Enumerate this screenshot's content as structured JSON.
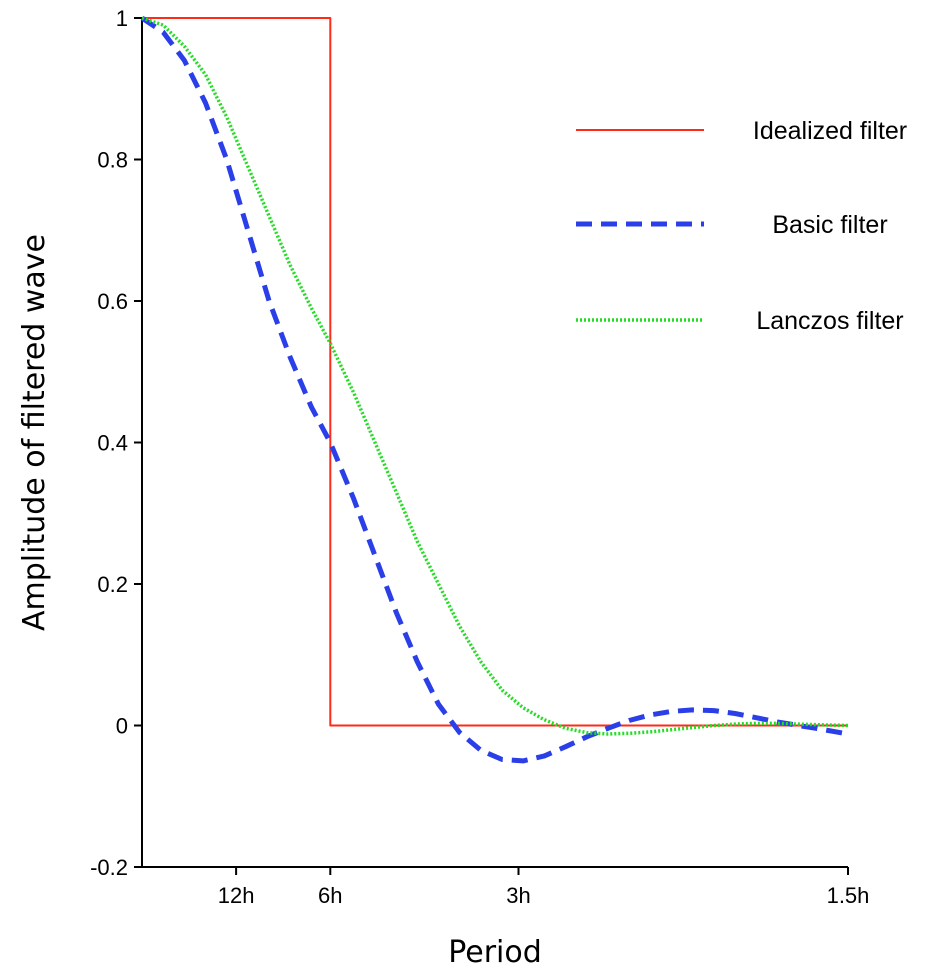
{
  "chart_data": {
    "type": "line",
    "xlabel": "Period",
    "ylabel": "Amplitude of filtered wave",
    "xlim": [
      0,
      1
    ],
    "ylim": [
      -0.2,
      1
    ],
    "y_ticks": [
      {
        "value": 1,
        "label": "1"
      },
      {
        "value": 0.8,
        "label": "0.8"
      },
      {
        "value": 0.6,
        "label": "0.6"
      },
      {
        "value": 0.4,
        "label": "0.4"
      },
      {
        "value": 0.2,
        "label": "0.2"
      },
      {
        "value": 0,
        "label": "0"
      },
      {
        "value": -0.2,
        "label": "-0.2"
      }
    ],
    "x_ticks": [
      {
        "value": 0.1333,
        "label": "12h"
      },
      {
        "value": 0.2667,
        "label": "6h"
      },
      {
        "value": 0.5333,
        "label": "3h"
      },
      {
        "value": 1.0,
        "label": "1.5h"
      }
    ],
    "legend_position": "top-right",
    "series": [
      {
        "name": "Idealized filter",
        "color": "#ff2a1a",
        "style": "solid",
        "x": [
          0.0,
          0.2667,
          0.2667,
          1.0
        ],
        "y": [
          1.0,
          1.0,
          0.0,
          0.0
        ]
      },
      {
        "name": "Basic filter",
        "color": "#2a3fe8",
        "style": "dashed",
        "x": [
          0.0,
          0.03,
          0.06,
          0.09,
          0.12,
          0.15,
          0.18,
          0.21,
          0.24,
          0.2667,
          0.3,
          0.33,
          0.36,
          0.39,
          0.42,
          0.45,
          0.48,
          0.51,
          0.54,
          0.57,
          0.6,
          0.63,
          0.66,
          0.69,
          0.72,
          0.75,
          0.78,
          0.81,
          0.84,
          0.87,
          0.9,
          0.93,
          0.96,
          1.0
        ],
        "y": [
          1.0,
          0.98,
          0.94,
          0.88,
          0.8,
          0.7,
          0.6,
          0.52,
          0.45,
          0.4,
          0.32,
          0.24,
          0.16,
          0.09,
          0.03,
          -0.01,
          -0.035,
          -0.048,
          -0.05,
          -0.043,
          -0.03,
          -0.016,
          -0.004,
          0.007,
          0.015,
          0.02,
          0.022,
          0.021,
          0.017,
          0.011,
          0.005,
          0.0,
          -0.005,
          -0.012
        ]
      },
      {
        "name": "Lanczos filter",
        "color": "#22dd22",
        "style": "dotted",
        "x": [
          0.0,
          0.03,
          0.06,
          0.09,
          0.12,
          0.15,
          0.18,
          0.21,
          0.24,
          0.2667,
          0.3,
          0.33,
          0.36,
          0.39,
          0.42,
          0.45,
          0.48,
          0.51,
          0.54,
          0.57,
          0.6,
          0.63,
          0.66,
          0.69,
          0.72,
          0.75,
          0.78,
          0.81,
          0.84,
          0.87,
          0.9,
          0.93,
          0.96,
          1.0
        ],
        "y": [
          1.0,
          0.99,
          0.96,
          0.92,
          0.86,
          0.79,
          0.72,
          0.65,
          0.59,
          0.54,
          0.47,
          0.4,
          0.33,
          0.26,
          0.2,
          0.14,
          0.09,
          0.05,
          0.025,
          0.008,
          -0.004,
          -0.01,
          -0.012,
          -0.011,
          -0.009,
          -0.006,
          -0.003,
          0.0,
          0.002,
          0.003,
          0.003,
          0.002,
          0.001,
          0.0
        ]
      }
    ]
  }
}
